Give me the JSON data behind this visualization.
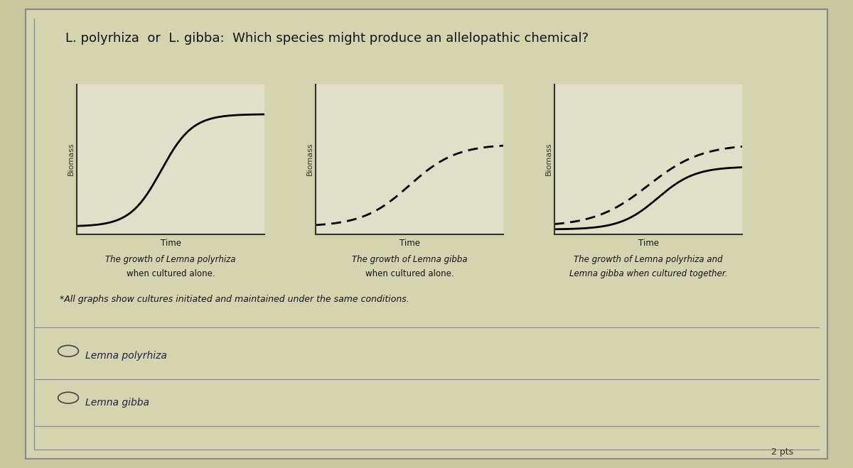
{
  "title": "L. polyrhiza  or  L. gibba:  Which species might produce an allelopathic chemical?",
  "bg_color": "#d8d8b0",
  "panel_bg": "#e8e8d0",
  "box_bg": "#ffffff",
  "graph1_caption_line1": "Time",
  "graph1_caption_line2": "The growth of Lemna polyrhiza",
  "graph1_caption_line3": "when cultured alone.",
  "graph2_caption_line1": "Time",
  "graph2_caption_line2": "The growth of Lemna gibba",
  "graph2_caption_line3": "when cultured alone.",
  "graph3_caption_line1": "Time",
  "graph3_caption_line2": "The growth of Lemna polyrhiza and",
  "graph3_caption_line3": "Lemna gibba when cultured together.",
  "footnote": "*All graphs show cultures initiated and maintained under the same conditions.",
  "option1": "Lemna polyrhiza",
  "option2": "Lemna gibba",
  "pts_label": "2 pts",
  "ylabel": "Biomass",
  "xlabel": "Time"
}
